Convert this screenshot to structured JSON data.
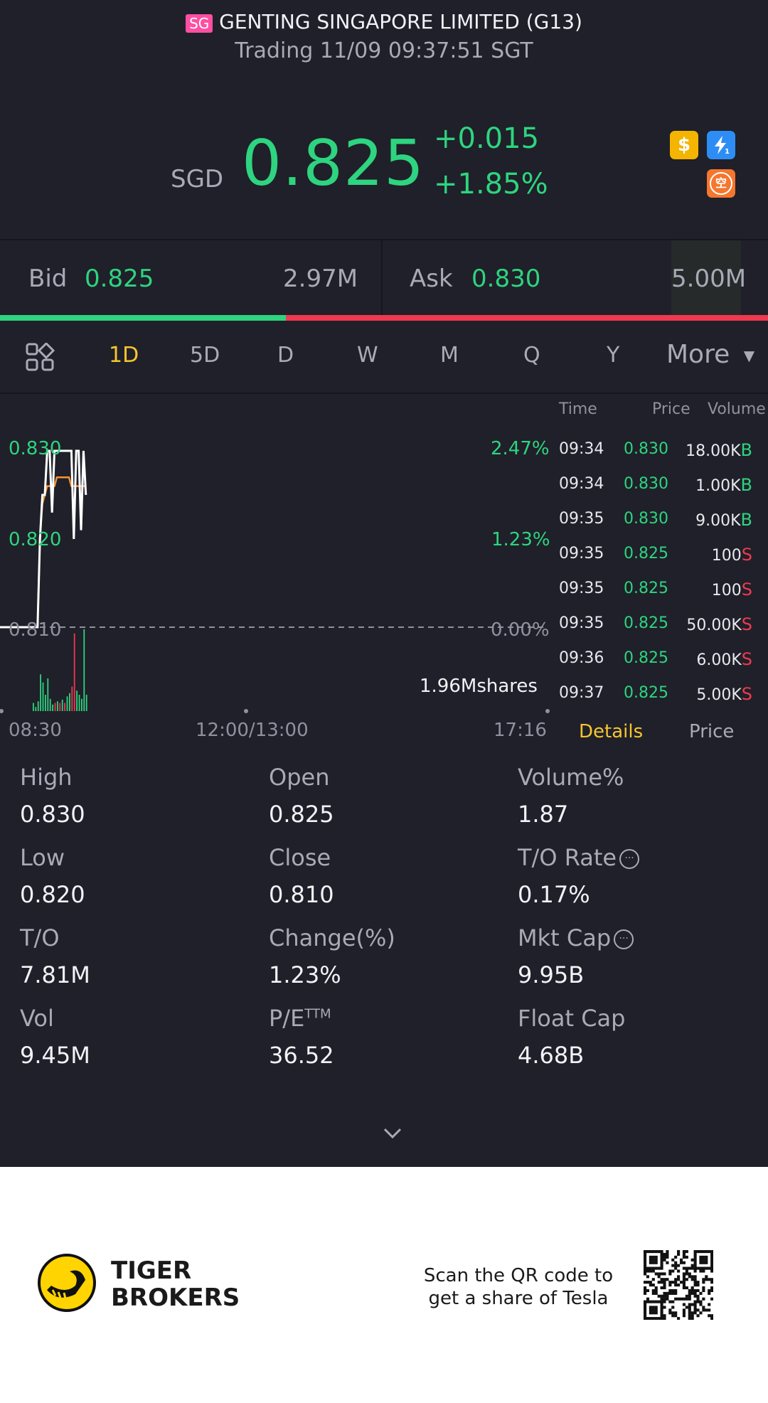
{
  "header": {
    "market_badge": "SG",
    "title": "GENTING SINGAPORE LIMITED (G13)",
    "subtitle": "Trading 11/09 09:37:51 SGT"
  },
  "quote": {
    "currency": "SGD",
    "price": "0.825",
    "change": "+0.015",
    "change_pct": "+1.85%",
    "icons": [
      "dollar-icon",
      "lightning-icon",
      "short-sell-icon"
    ],
    "short_icon_glyph": "空"
  },
  "bid_ask": {
    "bid_label": "Bid",
    "bid_price": "0.825",
    "bid_size": "2.97M",
    "ask_label": "Ask",
    "ask_price": "0.830",
    "ask_size": "5.00M",
    "bid_ratio": 0.372
  },
  "tabs": {
    "items": [
      "1D",
      "5D",
      "D",
      "W",
      "M",
      "Q",
      "Y"
    ],
    "active": "1D",
    "more_label": "More"
  },
  "chart_data": {
    "type": "line",
    "y_ticks": [
      "0.830",
      "0.820",
      "0.810"
    ],
    "pct_ticks": [
      "2.47%",
      "1.23%",
      "0.00%"
    ],
    "x_ticks": [
      "08:30",
      "12:00/13:00",
      "17:16"
    ],
    "volume_label": "1.96Mshares",
    "ylim": [
      0.81,
      0.83
    ],
    "prev_close": 0.81,
    "series": [
      {
        "values": [
          0.81,
          0.81,
          0.81,
          0.82,
          0.825,
          0.825,
          0.83,
          0.83,
          0.823,
          0.83,
          0.83,
          0.83,
          0.83,
          0.83,
          0.83,
          0.83,
          0.83,
          0.82,
          0.83,
          0.83,
          0.821,
          0.83,
          0.825
        ]
      },
      {
        "values": [
          0.81,
          0.81,
          0.81,
          0.82,
          0.824,
          0.825,
          0.826,
          0.826,
          0.826,
          0.826,
          0.827,
          0.827,
          0.827,
          0.827,
          0.827,
          0.827,
          0.826,
          0.826,
          0.826,
          0.826,
          0.826,
          0.826,
          0.826
        ]
      }
    ],
    "volume_bars": [
      {
        "v": 0.1,
        "c": "green"
      },
      {
        "v": 0.05,
        "c": "green"
      },
      {
        "v": 0.12,
        "c": "green"
      },
      {
        "v": 0.45,
        "c": "green"
      },
      {
        "v": 0.35,
        "c": "green"
      },
      {
        "v": 0.2,
        "c": "green"
      },
      {
        "v": 0.4,
        "c": "green"
      },
      {
        "v": 0.15,
        "c": "green"
      },
      {
        "v": 0.08,
        "c": "green"
      },
      {
        "v": 0.1,
        "c": "red"
      },
      {
        "v": 0.12,
        "c": "green"
      },
      {
        "v": 0.1,
        "c": "red"
      },
      {
        "v": 0.14,
        "c": "green"
      },
      {
        "v": 0.1,
        "c": "red"
      },
      {
        "v": 0.18,
        "c": "green"
      },
      {
        "v": 0.22,
        "c": "green"
      },
      {
        "v": 0.3,
        "c": "red"
      },
      {
        "v": 0.95,
        "c": "red"
      },
      {
        "v": 0.25,
        "c": "green"
      },
      {
        "v": 0.2,
        "c": "green"
      },
      {
        "v": 0.15,
        "c": "green"
      },
      {
        "v": 1.0,
        "c": "green"
      },
      {
        "v": 0.2,
        "c": "green"
      }
    ]
  },
  "trades": {
    "headers": {
      "time": "Time",
      "price": "Price",
      "volume": "Volume"
    },
    "rows": [
      {
        "time": "09:34",
        "price": "0.830",
        "volume": "18.00K",
        "side": "B"
      },
      {
        "time": "09:34",
        "price": "0.830",
        "volume": "1.00K",
        "side": "B"
      },
      {
        "time": "09:35",
        "price": "0.830",
        "volume": "9.00K",
        "side": "B"
      },
      {
        "time": "09:35",
        "price": "0.825",
        "volume": "100",
        "side": "S"
      },
      {
        "time": "09:35",
        "price": "0.825",
        "volume": "100",
        "side": "S"
      },
      {
        "time": "09:35",
        "price": "0.825",
        "volume": "50.00K",
        "side": "S"
      },
      {
        "time": "09:36",
        "price": "0.825",
        "volume": "6.00K",
        "side": "S"
      },
      {
        "time": "09:37",
        "price": "0.825",
        "volume": "5.00K",
        "side": "S"
      }
    ],
    "tab_details": "Details",
    "tab_price": "Price"
  },
  "stats": [
    {
      "label": "High",
      "value": "0.830",
      "info": false
    },
    {
      "label": "Open",
      "value": "0.825",
      "info": false
    },
    {
      "label": "Volume%",
      "value": "1.87",
      "info": false
    },
    {
      "label": "Low",
      "value": "0.820",
      "info": false
    },
    {
      "label": "Close",
      "value": "0.810",
      "info": false
    },
    {
      "label": "T/O Rate",
      "value": "0.17%",
      "info": true
    },
    {
      "label": "T/O",
      "value": "7.81M",
      "info": false
    },
    {
      "label": "Change(%)",
      "value": "1.23%",
      "info": false
    },
    {
      "label": "Mkt Cap",
      "value": "9.95B",
      "info": true
    },
    {
      "label": "Vol",
      "value": "9.45M",
      "info": false
    },
    {
      "label": "P/E",
      "value": "36.52",
      "info": false,
      "sup": "TTM"
    },
    {
      "label": "Float Cap",
      "value": "4.68B",
      "info": false
    }
  ],
  "footer": {
    "brand_line1": "TIGER",
    "brand_line2": "BROKERS",
    "promo_line1": "Scan the QR code to",
    "promo_line2": "get a share of Tesla"
  },
  "colors": {
    "up": "#2ed47f",
    "down": "#f0394f",
    "accent": "#f8c52e",
    "background": "#1f2029"
  }
}
